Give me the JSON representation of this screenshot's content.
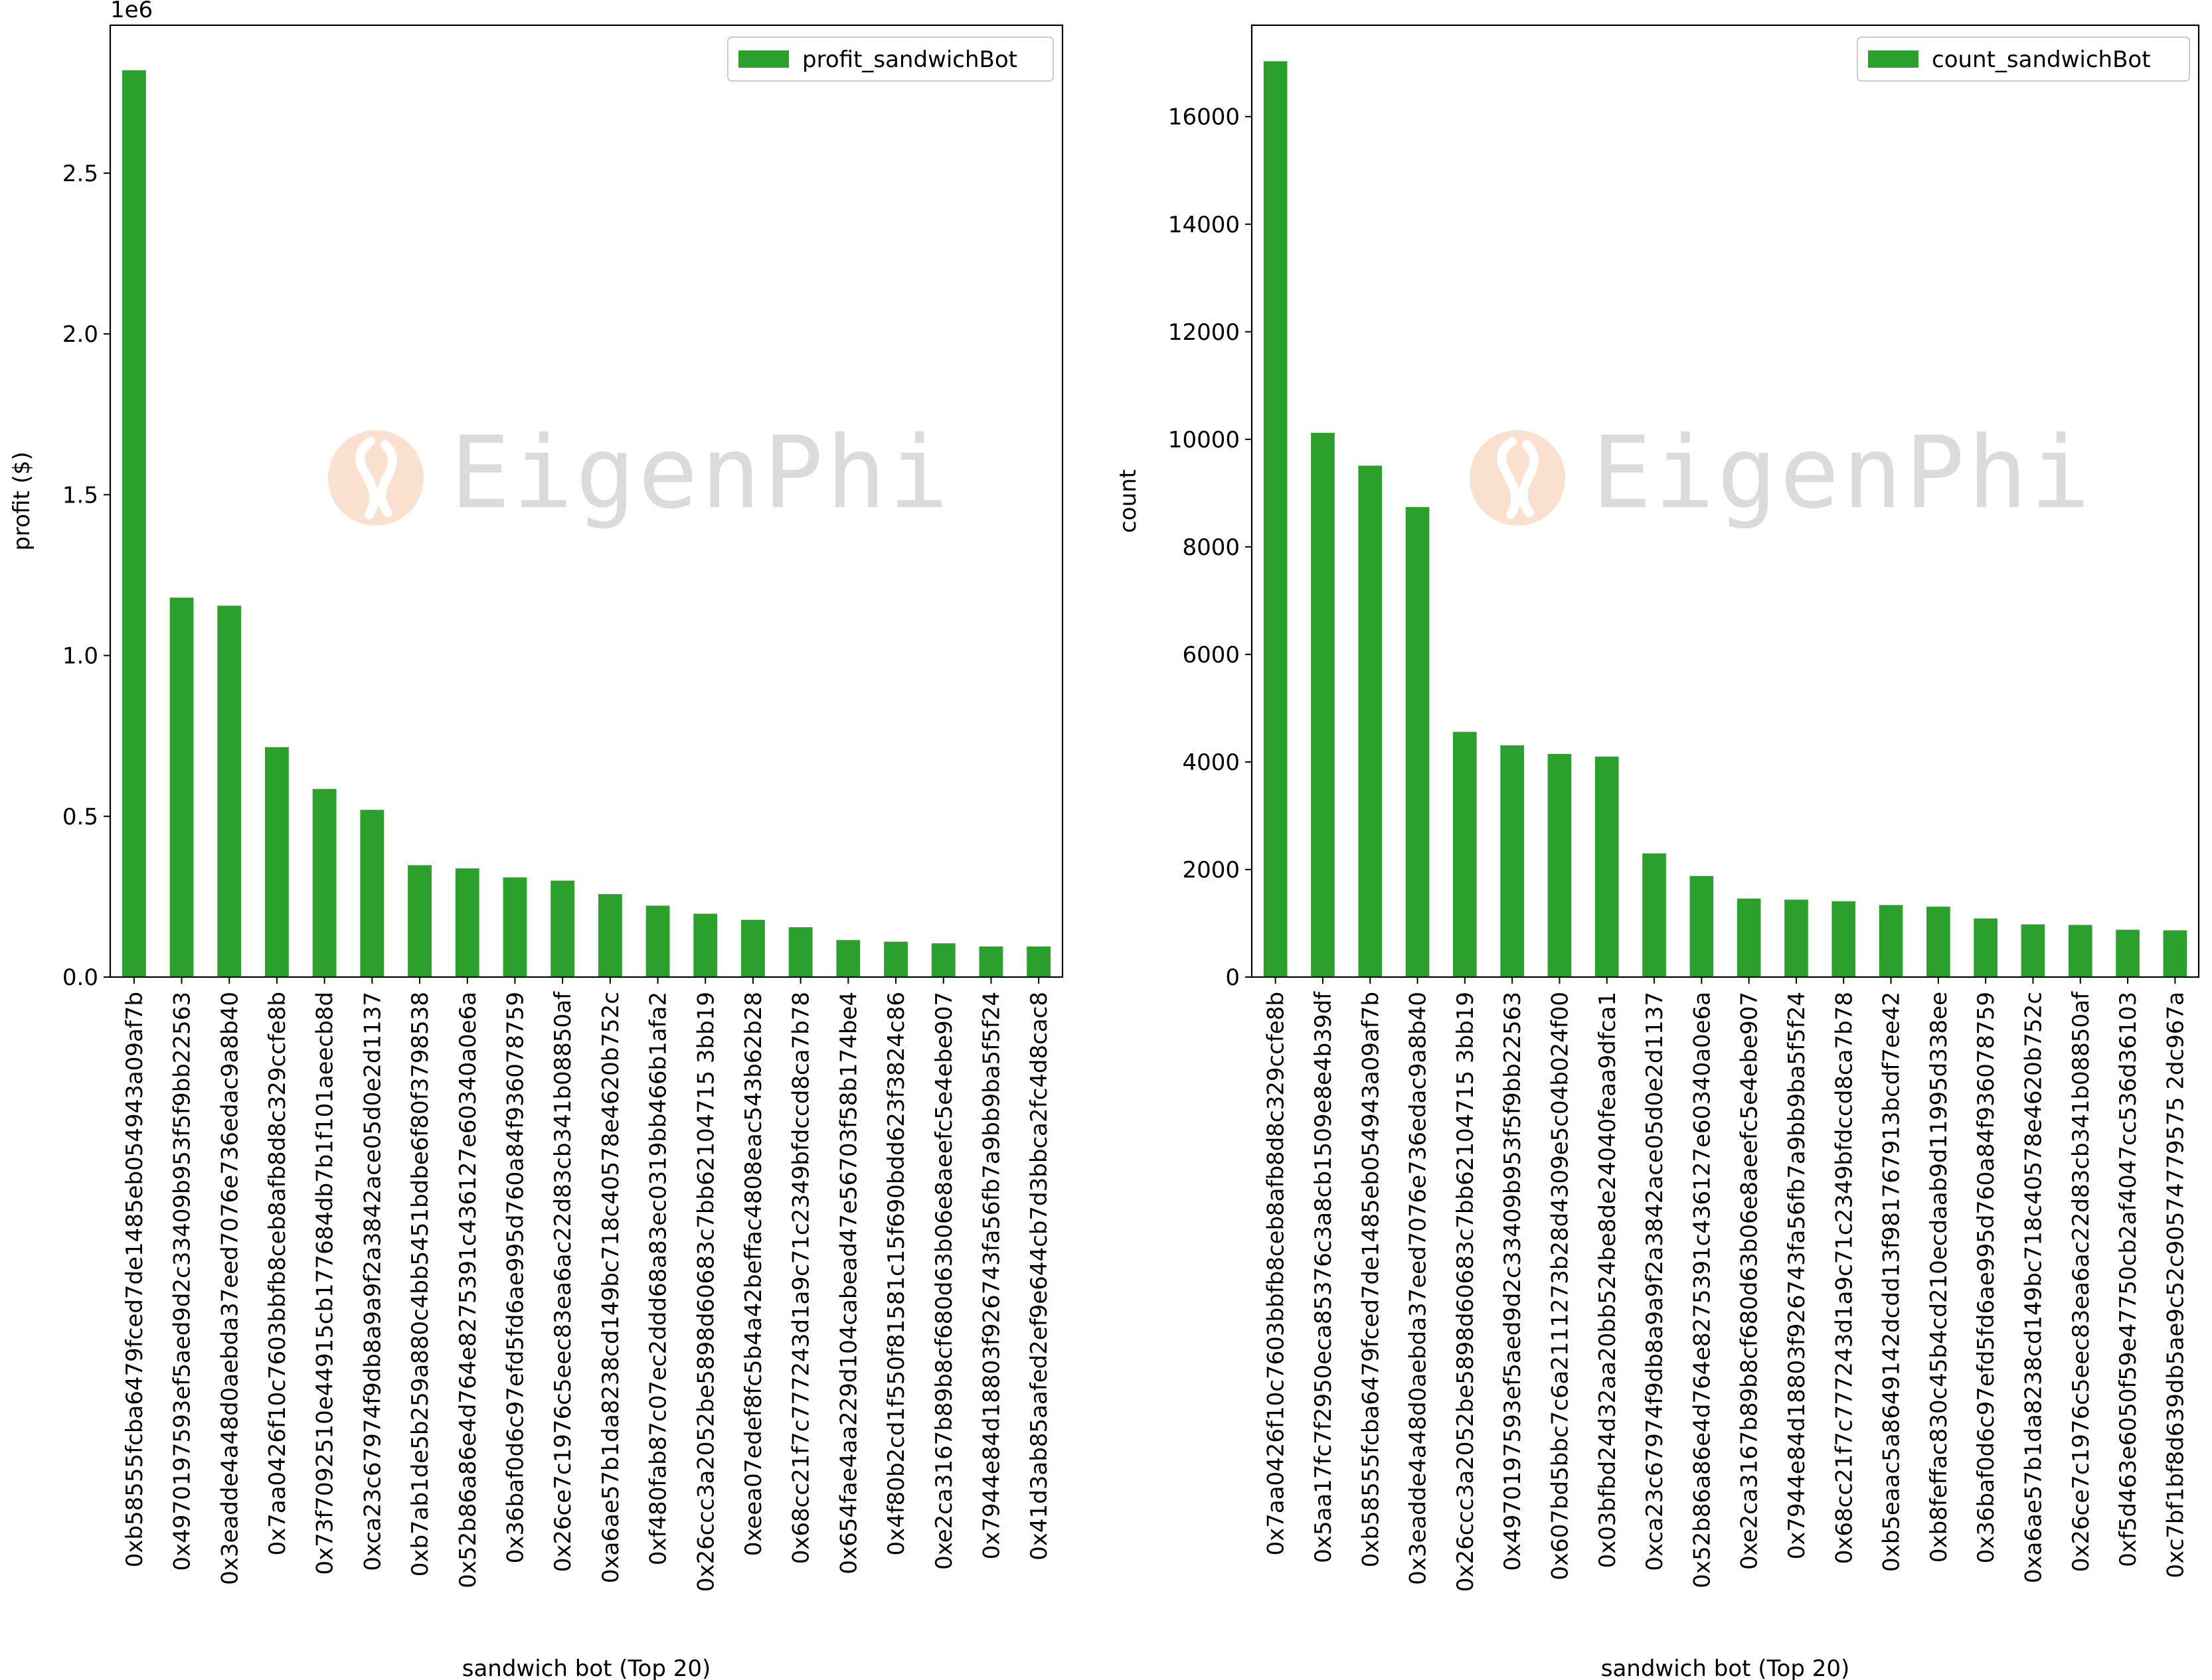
{
  "watermark": {
    "text": "EigenPhi",
    "logo_icon": "eigenphi-logo-icon",
    "text_color": "#cfcfcf",
    "logo_color": "#f6c9a9"
  },
  "bar_color": "#2ca02c",
  "chart_data": [
    {
      "type": "bar",
      "title": "",
      "xlabel": "sandwich bot (Top 20)",
      "ylabel": "profit ($)",
      "offset_label": "1e6",
      "ylim": [
        0,
        2960000
      ],
      "yticks": [
        0,
        500000,
        1000000,
        1500000,
        2000000,
        2500000
      ],
      "ytick_labels": [
        "0.0",
        "0.5",
        "1.0",
        "1.5",
        "2.0",
        "2.5"
      ],
      "legend": {
        "label": "profit_sandwichBot",
        "position": "top-right"
      },
      "grid": false,
      "categories": [
        "0xb58555fcba6479fced7de1485eb054943a09af7b",
        "0x4970197593ef5aed9d2c33409b953f5f9bb22563",
        "0x3eadde4a48d0aebda37eed7076e736edac9a8b40",
        "0x7aa0426f10c7603bbfb8ceb8afb8d8c329ccfe8b",
        "0x73f7092510e44915cb177684db7b1f101aeecb8d",
        "0xca23c67974f9db8a9a9f2a3842ace05d0e2d1137",
        "0xb7ab1de5b259a880c4bb5451bdbe6f80f3798538",
        "0x52b86a86e4d764e8275391c436127e60340a0e6a",
        "0x36baf0d6c97efd5fd6ae995d760a84f936078759",
        "0x26ce7c1976c5eec83ea6ac22d83cb341b08850af",
        "0xa6ae57b1da8238cd149bc718c40578e4620b752c",
        "0xf480fab87c07ec2ddd68a83ec0319bb466b1afa2",
        "0x26ccc3a2052be5898d60683c7bb62104715 3bb19",
        "0xeea07edef8fc5b4a42beffac4808eac543b62b28",
        "0x68cc21f7c777243d1a9c71c2349bfdccd8ca7b78",
        "0x654fae4aa229d104cabead47e56703f58b174be4",
        "0x4f80b2cd1f550f81581c15f690bdd623f3824c86",
        "0xe2ca3167b89b8cf680d63b06e8aeefc5e4ebe907",
        "0x7944e84d18803f926743fa56fb7a9bb9ba5f5f24",
        "0x41d3ab85aafed2ef9e644cb7d3bbca2fc4d8cac8"
      ],
      "values": [
        2820000,
        1180000,
        1155000,
        715000,
        585000,
        520000,
        348000,
        338000,
        310000,
        300000,
        258000,
        222000,
        197000,
        178000,
        155000,
        115000,
        110000,
        105000,
        95000,
        95000
      ]
    },
    {
      "type": "bar",
      "title": "",
      "xlabel": "sandwich bot (Top 20)",
      "ylabel": "count",
      "ylim": [
        0,
        17700
      ],
      "yticks": [
        0,
        2000,
        4000,
        6000,
        8000,
        10000,
        12000,
        14000,
        16000
      ],
      "ytick_labels": [
        "0",
        "2000",
        "4000",
        "6000",
        "8000",
        "10000",
        "12000",
        "14000",
        "16000"
      ],
      "legend": {
        "label": "count_sandwichBot",
        "position": "top-right"
      },
      "grid": false,
      "categories": [
        "0x7aa0426f10c7603bbfb8ceb8afb8d8c329ccfe8b",
        "0x5aa17fc7f2950eca85376c3a8cb1509e8e4b39df",
        "0xb58555fcba6479fced7de1485eb054943a09af7b",
        "0x3eadde4a48d0aebda37eed7076e736edac9a8b40",
        "0x26ccc3a2052be5898d60683c7bb62104715 3bb19",
        "0x4970197593ef5aed9d2c33409b953f5f9bb22563",
        "0x607bd5bbc7c6a2111273b28d4309e5c04b024f00",
        "0x03bfbd24d32aa20bb524be8de24040feaa9dfca1",
        "0xca23c67974f9db8a9a9f2a3842ace05d0e2d1137",
        "0x52b86a86e4d764e8275391c436127e60340a0e6a",
        "0xe2ca3167b89b8cf680d63b06e8aeefc5e4ebe907",
        "0x7944e84d18803f926743fa56fb7a9bb9ba5f5f24",
        "0x68cc21f7c777243d1a9c71c2349bfdccd8ca7b78",
        "0xb5eaac5a8649142dcdd13f981767913bcdf7ee42",
        "0xb8feffac830c45b4cd210ecdaab9d11995d338ee",
        "0x36baf0d6c97efd5fd6ae995d760a84f936078759",
        "0xa6ae57b1da8238cd149bc718c40578e4620b752c",
        "0x26ce7c1976c5eec83ea6ac22d83cb341b08850af",
        "0xf5d463e6050f59e47750cb2af4047cc536d36103",
        "0xc7bf1bf8d639db5ae9c52c90574779575 2dc967a"
      ],
      "values": [
        17030,
        10120,
        9510,
        8740,
        4560,
        4310,
        4150,
        4100,
        2300,
        1880,
        1460,
        1440,
        1410,
        1340,
        1310,
        1090,
        980,
        970,
        880,
        870
      ]
    }
  ]
}
